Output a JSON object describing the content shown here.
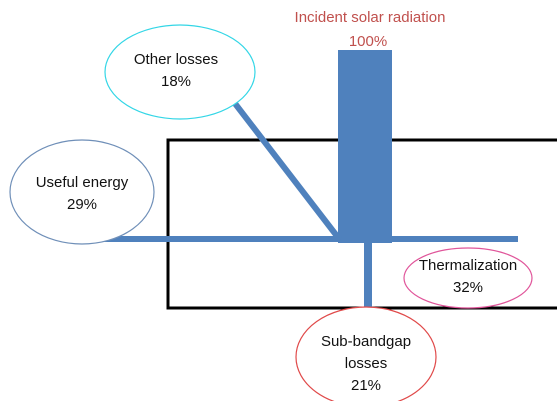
{
  "title": {
    "label": "Incident solar radiation",
    "percent": "100%"
  },
  "nodes": [
    {
      "label": "Other losses",
      "percent": "18%"
    },
    {
      "label": "Useful energy",
      "percent": "29%"
    },
    {
      "label": "Thermalization",
      "percent": "32%"
    },
    {
      "label": [
        "Sub-bandgap",
        "losses"
      ],
      "percent": "21%"
    }
  ]
}
